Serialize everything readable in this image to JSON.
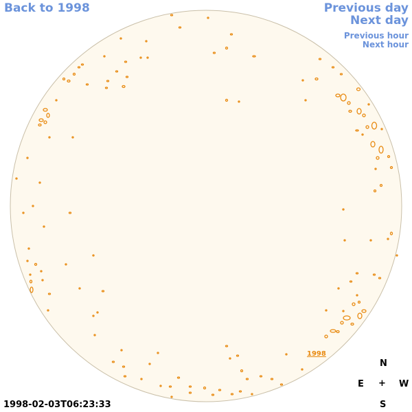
{
  "nav": {
    "back": "Back to 1998",
    "previous_day": "Previous day",
    "next_day": "Next day",
    "previous_hour": "Previous hour",
    "next_hour": "Next hour"
  },
  "compass": {
    "north": "N",
    "east": "E",
    "center": "+",
    "west": "W",
    "south": "S"
  },
  "timestamp": "1998-02-03T06:23:33",
  "year_label": "1998",
  "colors": {
    "link": "#6b93db",
    "disk_fill": "#fef9ee",
    "disk_edge": "#c9bfa8",
    "contour": "#e8890f"
  }
}
